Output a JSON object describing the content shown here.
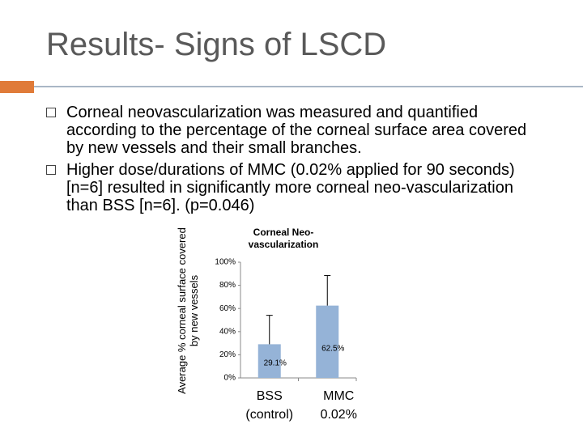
{
  "title": "Results- Signs of LSCD",
  "bullets": [
    "Corneal neovascularization was measured and quantified according to the percentage of the corneal surface area covered by new vessels and their small branches.",
    "Higher dose/durations of MMC (0.02% applied for 90 seconds) [n=6] resulted in significantly more corneal neo-vascularization than BSS [n=6]. (p=0.046)"
  ],
  "chart_data": {
    "type": "bar",
    "title": "Corneal Neo-vascularization",
    "y_label": "Average % corneal surface covered by new vessels",
    "categories": [
      "BSS (control)",
      "MMC 0.02%"
    ],
    "values": [
      29.1,
      62.5
    ],
    "value_labels": [
      "29.1%",
      "62.5%"
    ],
    "errors": [
      25,
      26
    ],
    "color": "#95b3d7",
    "ylim": [
      0,
      100
    ],
    "yticks": [
      {
        "value": 0,
        "label": "0%"
      },
      {
        "value": 20,
        "label": "20%"
      },
      {
        "value": 40,
        "label": "40%"
      },
      {
        "value": 60,
        "label": "60%"
      },
      {
        "value": 80,
        "label": "80%"
      },
      {
        "value": 100,
        "label": "100%"
      }
    ]
  }
}
